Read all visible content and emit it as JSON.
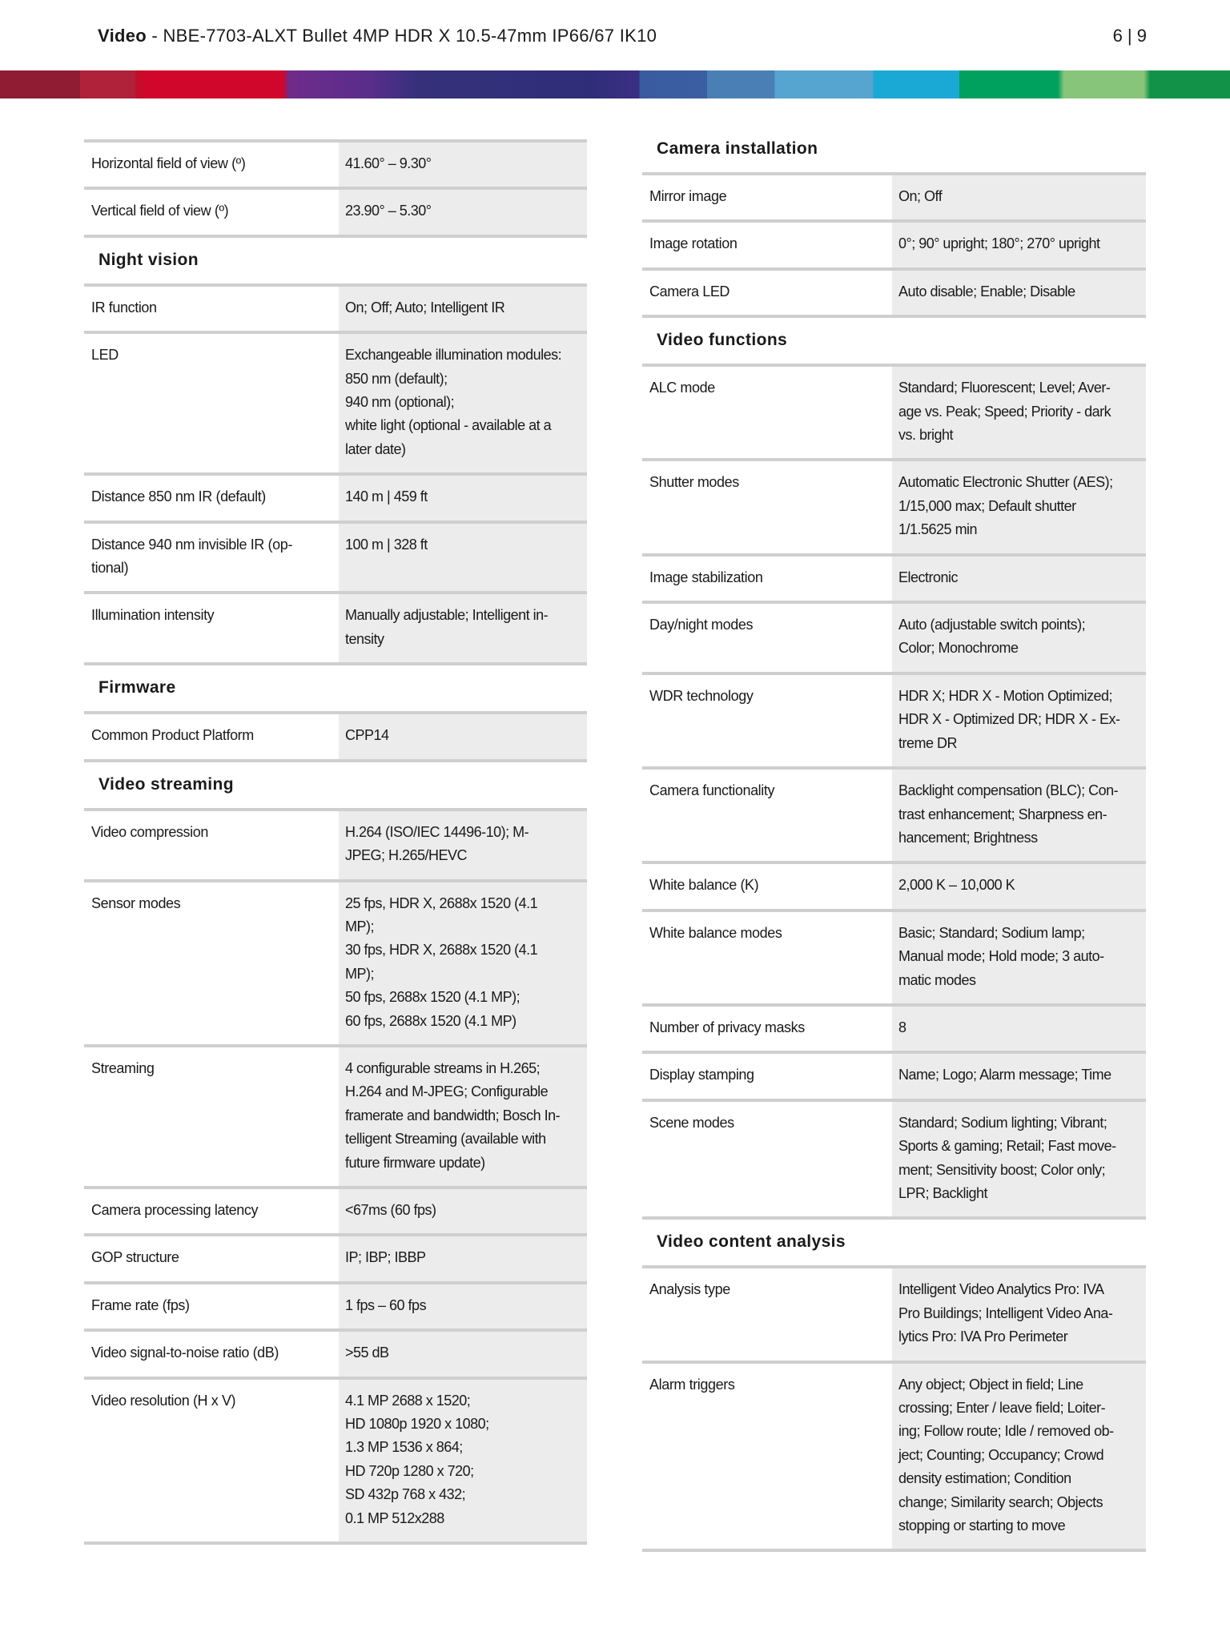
{
  "header": {
    "title_bold": "Video",
    "title_rest": " - NBE-7703-ALXT Bullet 4MP HDR X 10.5-47mm IP66/67 IK10",
    "page": "6 | 9"
  },
  "left": [
    {
      "type": "row",
      "label": "Horizontal field of view (º)",
      "value": "41.60° – 9.30°"
    },
    {
      "type": "row",
      "label": "Vertical field of view (º)",
      "value": "23.90° – 5.30°"
    },
    {
      "type": "section",
      "title": "Night vision"
    },
    {
      "type": "row",
      "label": "IR function",
      "value": "On; Off; Auto; Intelligent IR"
    },
    {
      "type": "row",
      "label": "LED",
      "value": "Exchangeable illumination modules:\n850 nm (default);\n940 nm (optional);\nwhite light (optional - available at a\nlater date)"
    },
    {
      "type": "row",
      "label": "Distance 850 nm IR (default)",
      "value": "140 m | 459 ft"
    },
    {
      "type": "row",
      "label": "Distance 940 nm invisible IR (op-\ntional)",
      "value": "100 m | 328 ft"
    },
    {
      "type": "row",
      "label": "Illumination intensity",
      "value": "Manually adjustable; Intelligent in-\ntensity"
    },
    {
      "type": "section",
      "title": "Firmware"
    },
    {
      "type": "row",
      "label": "Common Product Platform",
      "value": "CPP14"
    },
    {
      "type": "section",
      "title": "Video streaming"
    },
    {
      "type": "row",
      "label": "Video compression",
      "value": "H.264 (ISO/IEC 14496-10); M-\nJPEG; H.265/HEVC"
    },
    {
      "type": "row",
      "label": "Sensor modes",
      "value": "25 fps, HDR X, 2688x 1520 (4.1\nMP);\n30 fps, HDR X, 2688x 1520 (4.1\nMP);\n50 fps, 2688x 1520 (4.1 MP);\n60 fps, 2688x 1520 (4.1 MP)"
    },
    {
      "type": "row",
      "label": "Streaming",
      "value": "4 configurable streams in H.265;\nH.264 and M-JPEG; Configurable\nframerate and bandwidth; Bosch In-\ntelligent Streaming (available with\nfuture firmware update)"
    },
    {
      "type": "row",
      "label": "Camera processing latency",
      "value": "<67ms (60 fps)"
    },
    {
      "type": "row",
      "label": "GOP structure",
      "value": "IP; IBP; IBBP"
    },
    {
      "type": "row",
      "label": "Frame rate (fps)",
      "value": "1 fps – 60 fps"
    },
    {
      "type": "row",
      "label": "Video signal-to-noise ratio (dB)",
      "value": ">55 dB"
    },
    {
      "type": "row",
      "label": "Video resolution (H x V)",
      "value": "4.1 MP 2688 x 1520;\nHD 1080p 1920 x 1080;\n1.3 MP 1536 x 864;\nHD 720p 1280 x 720;\nSD 432p 768 x 432;\n0.1 MP 512x288"
    }
  ],
  "right": [
    {
      "type": "section",
      "title": "Camera installation"
    },
    {
      "type": "row",
      "label": "Mirror image",
      "value": "On; Off"
    },
    {
      "type": "row",
      "label": "Image rotation",
      "value": "0°; 90° upright; 180°; 270° upright"
    },
    {
      "type": "row",
      "label": "Camera LED",
      "value": "Auto disable; Enable; Disable"
    },
    {
      "type": "section",
      "title": "Video functions"
    },
    {
      "type": "row",
      "label": "ALC mode",
      "value": "Standard; Fluorescent; Level; Aver-\nage vs. Peak; Speed; Priority - dark\nvs. bright"
    },
    {
      "type": "row",
      "label": "Shutter modes",
      "value": "Automatic Electronic Shutter (AES);\n1/15,000 max; Default shutter\n1/1.5625 min"
    },
    {
      "type": "row",
      "label": "Image stabilization",
      "value": "Electronic"
    },
    {
      "type": "row",
      "label": "Day/night modes",
      "value": "Auto (adjustable switch points);\nColor; Monochrome"
    },
    {
      "type": "row",
      "label": "WDR technology",
      "value": "HDR X; HDR X - Motion Optimized;\nHDR X - Optimized DR; HDR X - Ex-\ntreme DR"
    },
    {
      "type": "row",
      "label": "Camera functionality",
      "value": "Backlight compensation (BLC); Con-\ntrast enhancement; Sharpness en-\nhancement; Brightness"
    },
    {
      "type": "row",
      "label": "White balance (K)",
      "value": "2,000 K – 10,000 K"
    },
    {
      "type": "row",
      "label": "White balance modes",
      "value": "Basic; Standard; Sodium lamp;\nManual mode; Hold mode; 3 auto-\nmatic modes"
    },
    {
      "type": "row",
      "label": "Number of privacy masks",
      "value": "8"
    },
    {
      "type": "row",
      "label": "Display stamping",
      "value": "Name; Logo; Alarm message; Time"
    },
    {
      "type": "row",
      "label": "Scene modes",
      "value": "Standard; Sodium lighting; Vibrant;\nSports & gaming; Retail; Fast move-\nment; Sensitivity boost; Color only;\nLPR; Backlight"
    },
    {
      "type": "section",
      "title": "Video content analysis"
    },
    {
      "type": "row",
      "label": "Analysis type",
      "value": "Intelligent Video Analytics Pro: IVA\nPro Buildings; Intelligent Video Ana-\nlytics Pro: IVA Pro Perimeter"
    },
    {
      "type": "row",
      "label": "Alarm triggers",
      "value": "Any object; Object in field; Line\ncrossing; Enter / leave field; Loiter-\ning; Follow route; Idle / removed ob-\nject; Counting; Occupancy; Crowd\ndensity estimation; Condition\nchange; Similarity search; Objects\nstopping or starting to move"
    }
  ]
}
